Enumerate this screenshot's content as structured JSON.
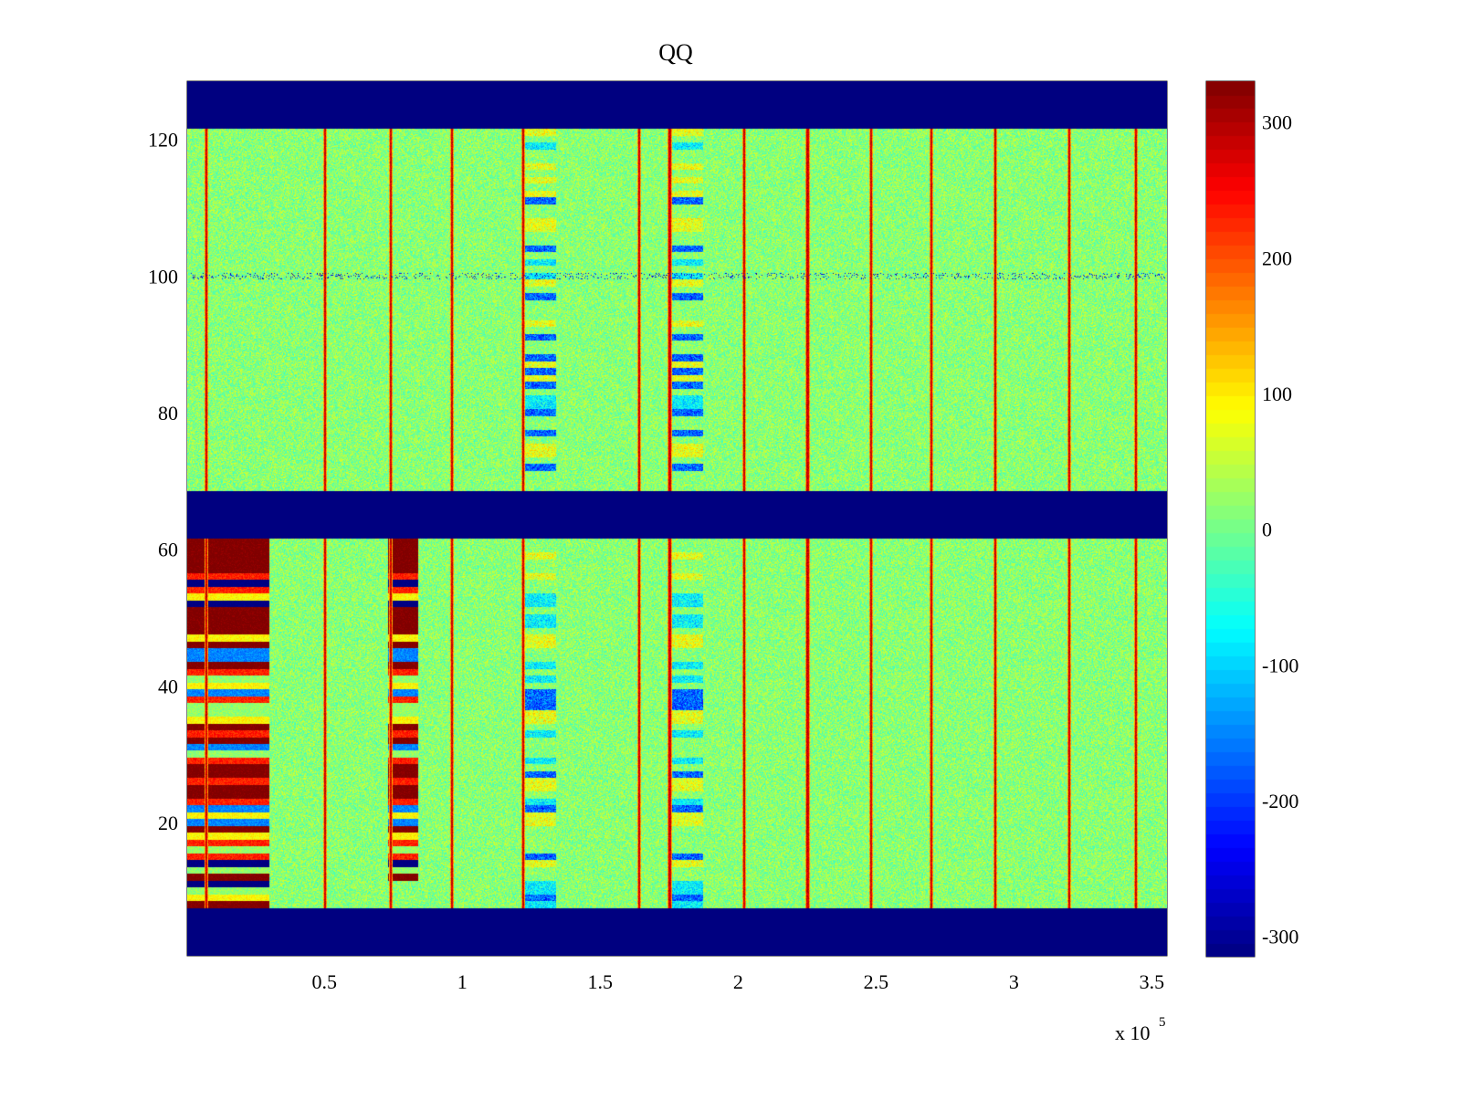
{
  "chart_data": {
    "type": "heatmap",
    "title": "QQ",
    "xlabel": "",
    "ylabel": "",
    "x_exponent_label": "x 10",
    "x_exponent_power": "5",
    "xlim": [
      0.0025,
      3.555
    ],
    "ylim": [
      0.5,
      128.5
    ],
    "x_ticks": [
      0.5,
      1,
      1.5,
      2,
      2.5,
      3,
      3.5
    ],
    "x_tick_labels": [
      "0.5",
      "1",
      "1.5",
      "2",
      "2.5",
      "3",
      "3.5"
    ],
    "y_ticks": [
      20,
      40,
      60,
      80,
      100,
      120
    ],
    "y_tick_labels": [
      "20",
      "40",
      "60",
      "80",
      "100",
      "120"
    ],
    "colorbar": {
      "clim": [
        -315,
        330
      ],
      "ticks": [
        -300,
        -200,
        -100,
        0,
        100,
        200,
        300
      ],
      "tick_labels": [
        "-300",
        "-200",
        "-100",
        "0",
        "100",
        "200",
        "300"
      ],
      "colormap": "jet"
    },
    "empty_row_bands": [
      [
        0.5,
        7.5
      ],
      [
        61.5,
        68.5
      ],
      [
        121.5,
        128.5
      ]
    ],
    "background_value": 0,
    "vertical_lines_x": [
      0.07,
      0.5,
      0.74,
      0.96,
      1.22,
      1.64,
      1.75,
      2.02,
      2.25,
      2.48,
      2.7,
      2.93,
      3.2,
      3.44
    ],
    "saturated_blocks": [
      {
        "x": [
          0.0025,
          0.3
        ],
        "rows": [
          8,
          61
        ]
      },
      {
        "x": [
          0.73,
          0.84
        ],
        "rows": [
          12,
          61
        ]
      }
    ],
    "striped_columns_x": [
      [
        1.22,
        1.34
      ],
      [
        1.75,
        1.87
      ]
    ],
    "row_100_spikes": "negative values scattered across x"
  }
}
